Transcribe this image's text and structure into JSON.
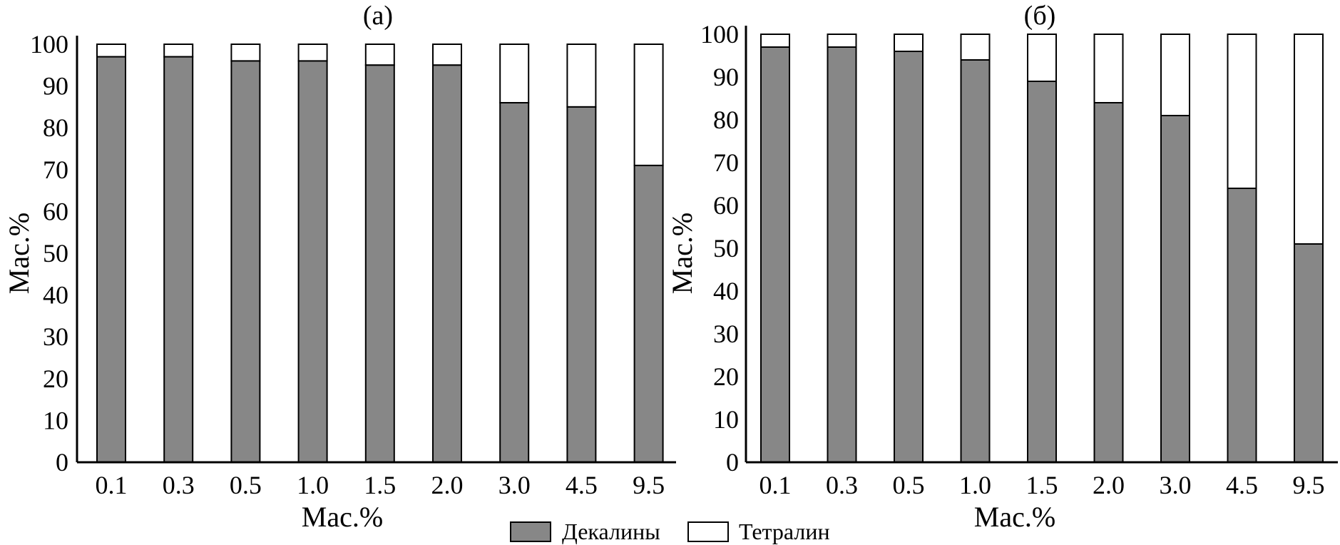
{
  "chart_data": [
    {
      "type": "bar",
      "stacked": true,
      "title": "(а)",
      "xlabel": "Мас.%",
      "ylabel": "Мас.%",
      "ylim": [
        0,
        100
      ],
      "yticks": [
        "0",
        "10",
        "20",
        "30",
        "40",
        "50",
        "60",
        "70",
        "80",
        "90",
        "100"
      ],
      "categories": [
        "0.1",
        "0.3",
        "0.5",
        "1.0",
        "1.5",
        "2.0",
        "3.0",
        "4.5",
        "9.5"
      ],
      "series": [
        {
          "name": "Декалины",
          "values": [
            97,
            97,
            96,
            96,
            95,
            95,
            86,
            85,
            71
          ]
        },
        {
          "name": "Тетралин",
          "values": [
            3,
            3,
            4,
            4,
            5,
            5,
            14,
            15,
            29
          ]
        }
      ]
    },
    {
      "type": "bar",
      "stacked": true,
      "title": "(б)",
      "xlabel": "Мас.%",
      "ylabel": "Мас.%",
      "ylim": [
        0,
        100
      ],
      "yticks": [
        "0",
        "10",
        "20",
        "30",
        "40",
        "50",
        "60",
        "70",
        "80",
        "90",
        "100"
      ],
      "categories": [
        "0.1",
        "0.3",
        "0.5",
        "1.0",
        "1.5",
        "2.0",
        "3.0",
        "4.5",
        "9.5"
      ],
      "series": [
        {
          "name": "Декалины",
          "values": [
            97,
            97,
            96,
            94,
            89,
            84,
            81,
            64,
            51
          ]
        },
        {
          "name": "Тетралин",
          "values": [
            3,
            3,
            4,
            6,
            11,
            16,
            19,
            36,
            49
          ]
        }
      ]
    }
  ],
  "legend": {
    "position": "bottom-center",
    "items": [
      {
        "label": "Декалины",
        "color": "#878787"
      },
      {
        "label": "Тетралин",
        "color": "#ffffff"
      }
    ]
  },
  "colors": {
    "decalin": "#878787",
    "tetralin": "#ffffff",
    "outline": "#000000"
  }
}
